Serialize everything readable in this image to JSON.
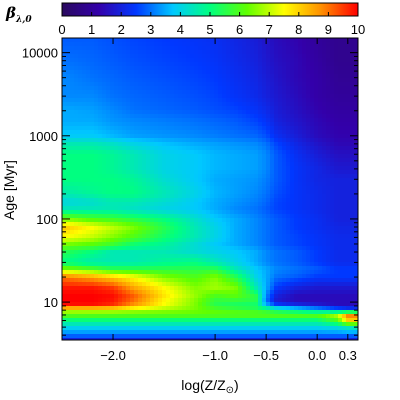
{
  "chart_data": {
    "type": "heatmap",
    "colorbar": {
      "title": "β",
      "title_subscript": "λ,0",
      "range": [
        0,
        10
      ],
      "ticks": [
        "0",
        "1",
        "2",
        "3",
        "4",
        "5",
        "6",
        "7",
        "8",
        "9",
        "10"
      ],
      "colormap": [
        "#2a0a5e",
        "#3300aa",
        "#0038ff",
        "#00c8ff",
        "#00ff80",
        "#60ff00",
        "#ffff00",
        "#ff9000",
        "#ff0000"
      ]
    },
    "x_axis": {
      "label": "log(Z/Z",
      "label_sub": "⊙",
      "label_end": ")",
      "range": [
        -2.5,
        0.4
      ],
      "ticks": [
        {
          "value": -2.0,
          "label": "−2.0"
        },
        {
          "value": -1.0,
          "label": "−1.0"
        },
        {
          "value": -0.5,
          "label": "−0.5"
        },
        {
          "value": 0.0,
          "label": "0.0"
        },
        {
          "value": 0.3,
          "label": "0.3"
        }
      ]
    },
    "y_axis": {
      "label": "Age [Myr]",
      "scale": "log",
      "range": [
        3.5,
        15000
      ],
      "ticks": [
        {
          "value": 10,
          "label": "10"
        },
        {
          "value": 100,
          "label": "100"
        },
        {
          "value": 1000,
          "label": "1000"
        },
        {
          "value": 10000,
          "label": "10000"
        }
      ]
    },
    "values_matrix_description": "beta values sampled on grid of ages (rows, log) and metallicities (columns)",
    "ages": [
      3.5,
      4,
      5,
      6,
      7,
      8,
      9,
      10,
      12,
      15,
      20,
      25,
      30,
      40,
      50,
      60,
      80,
      100,
      130,
      160,
      200,
      300,
      400,
      600,
      800,
      1000,
      1500,
      2000,
      3000,
      5000,
      8000,
      15000
    ],
    "logZ": [
      -2.5,
      -2.2,
      -2.0,
      -1.8,
      -1.5,
      -1.2,
      -1.0,
      -0.8,
      -0.6,
      -0.5,
      -0.4,
      -0.2,
      0.0,
      0.2,
      0.3,
      0.4
    ],
    "beta": [
      [
        2.0,
        2.0,
        2.0,
        2.0,
        2.0,
        2.0,
        2.0,
        2.0,
        2.0,
        2.0,
        2.0,
        2.0,
        2.0,
        2.0,
        2.0,
        2.0
      ],
      [
        3.0,
        3.0,
        3.0,
        3.0,
        3.0,
        3.0,
        3.0,
        3.0,
        3.0,
        3.0,
        3.0,
        3.0,
        3.0,
        3.0,
        3.0,
        3.0
      ],
      [
        4.0,
        4.0,
        4.0,
        4.0,
        4.0,
        4.0,
        4.0,
        4.0,
        4.0,
        4.0,
        4.0,
        4.0,
        4.0,
        4.2,
        4.5,
        4.5
      ],
      [
        5.0,
        5.0,
        5.0,
        5.0,
        5.0,
        5.0,
        5.0,
        5.0,
        5.0,
        5.0,
        5.0,
        5.0,
        5.0,
        6.0,
        8.0,
        8.0
      ],
      [
        6.2,
        6.2,
        6.2,
        6.2,
        6.2,
        6.2,
        6.2,
        6.2,
        6.2,
        6.2,
        6.2,
        6.2,
        6.2,
        7.0,
        9.0,
        9.0
      ],
      [
        7.0,
        7.0,
        7.0,
        6.8,
        6.6,
        6.4,
        6.2,
        6.0,
        5.8,
        5.5,
        5.0,
        4.5,
        4.0,
        3.5,
        3.0,
        3.0
      ],
      [
        9.8,
        9.8,
        9.5,
        8.5,
        7.5,
        6.5,
        5.5,
        5.2,
        5.0,
        4.0,
        3.0,
        2.5,
        2.0,
        1.5,
        1.5,
        1.5
      ],
      [
        10.0,
        10.0,
        9.8,
        9.0,
        7.5,
        6.5,
        5.5,
        5.5,
        5.5,
        3.0,
        1.8,
        1.5,
        1.5,
        1.5,
        1.5,
        1.5
      ],
      [
        10.0,
        10.0,
        9.9,
        9.2,
        7.8,
        6.7,
        6.0,
        6.2,
        5.5,
        3.2,
        2.0,
        1.5,
        1.5,
        1.5,
        1.5,
        1.5
      ],
      [
        9.8,
        9.8,
        9.5,
        8.5,
        7.5,
        6.5,
        6.8,
        6.5,
        4.5,
        3.5,
        2.5,
        2.0,
        1.8,
        1.8,
        1.8,
        1.8
      ],
      [
        9.0,
        8.5,
        8.0,
        7.5,
        6.5,
        6.0,
        6.5,
        5.5,
        4.0,
        3.5,
        3.0,
        2.8,
        2.5,
        2.5,
        2.5,
        2.5
      ],
      [
        6.5,
        6.0,
        5.5,
        5.5,
        5.5,
        5.5,
        5.5,
        4.5,
        3.8,
        3.5,
        3.2,
        3.0,
        2.8,
        2.5,
        2.5,
        2.5
      ],
      [
        5.0,
        4.5,
        4.5,
        4.5,
        4.8,
        5.0,
        4.5,
        4.0,
        3.5,
        3.2,
        3.0,
        2.8,
        2.5,
        2.2,
        2.2,
        2.2
      ],
      [
        5.5,
        5.0,
        4.5,
        4.5,
        4.5,
        4.2,
        4.0,
        3.8,
        3.5,
        3.2,
        3.0,
        2.8,
        2.5,
        2.2,
        2.2,
        2.2
      ],
      [
        6.5,
        6.2,
        5.8,
        5.2,
        4.8,
        4.2,
        3.8,
        3.5,
        3.2,
        3.0,
        2.8,
        2.6,
        2.4,
        2.2,
        2.2,
        2.2
      ],
      [
        7.5,
        7.0,
        6.5,
        6.0,
        5.2,
        4.5,
        4.0,
        3.5,
        3.2,
        3.0,
        2.8,
        2.6,
        2.4,
        2.2,
        2.2,
        2.2
      ],
      [
        8.2,
        7.5,
        7.0,
        6.5,
        5.5,
        4.5,
        4.0,
        3.5,
        3.2,
        3.0,
        2.8,
        2.5,
        2.3,
        2.1,
        2.1,
        2.1
      ],
      [
        6.5,
        6.0,
        5.8,
        5.5,
        5.0,
        4.3,
        3.8,
        3.5,
        3.2,
        3.0,
        2.8,
        2.5,
        2.3,
        2.0,
        2.0,
        2.0
      ],
      [
        4.5,
        4.5,
        4.5,
        4.3,
        4.0,
        3.8,
        3.5,
        3.2,
        3.0,
        2.8,
        2.6,
        2.4,
        2.2,
        2.0,
        2.0,
        2.0
      ],
      [
        4.0,
        4.2,
        4.5,
        4.5,
        4.2,
        3.8,
        3.5,
        3.3,
        3.1,
        2.9,
        2.6,
        2.4,
        2.2,
        2.0,
        2.0,
        2.0
      ],
      [
        4.5,
        4.8,
        5.0,
        5.0,
        4.5,
        4.0,
        3.6,
        3.4,
        3.2,
        3.0,
        2.7,
        2.4,
        2.2,
        2.0,
        2.0,
        2.0
      ],
      [
        5.0,
        5.0,
        5.0,
        4.8,
        4.2,
        3.8,
        3.5,
        3.4,
        3.3,
        3.1,
        2.8,
        2.4,
        2.1,
        2.0,
        2.0,
        2.0
      ],
      [
        5.0,
        5.0,
        4.8,
        4.5,
        4.0,
        3.8,
        3.6,
        3.5,
        3.4,
        3.2,
        2.8,
        2.4,
        2.1,
        1.8,
        1.8,
        1.8
      ],
      [
        5.0,
        5.0,
        4.8,
        4.5,
        4.0,
        3.8,
        3.6,
        3.5,
        3.4,
        3.2,
        2.8,
        2.3,
        1.9,
        1.6,
        1.6,
        1.6
      ],
      [
        4.5,
        4.5,
        4.3,
        4.0,
        3.7,
        3.5,
        3.4,
        3.3,
        3.2,
        3.0,
        2.6,
        2.1,
        1.7,
        1.4,
        1.4,
        1.4
      ],
      [
        3.8,
        3.8,
        3.6,
        3.4,
        3.3,
        3.2,
        3.1,
        3.0,
        2.9,
        2.7,
        2.3,
        1.9,
        1.5,
        1.3,
        1.3,
        1.3
      ],
      [
        3.5,
        3.5,
        3.3,
        3.2,
        3.1,
        3.0,
        2.9,
        2.8,
        2.6,
        2.4,
        2.0,
        1.7,
        1.4,
        1.2,
        1.2,
        1.2
      ],
      [
        3.5,
        3.4,
        3.2,
        3.0,
        2.9,
        2.8,
        2.7,
        2.6,
        2.4,
        2.2,
        1.9,
        1.6,
        1.3,
        1.1,
        1.1,
        1.1
      ],
      [
        3.2,
        3.2,
        3.0,
        2.9,
        2.8,
        2.7,
        2.6,
        2.4,
        2.2,
        2.0,
        1.8,
        1.5,
        1.2,
        1.0,
        1.0,
        1.0
      ],
      [
        3.2,
        3.0,
        2.9,
        2.8,
        2.7,
        2.6,
        2.5,
        2.3,
        2.1,
        1.9,
        1.7,
        1.4,
        1.2,
        0.9,
        0.9,
        0.9
      ],
      [
        3.0,
        2.9,
        2.8,
        2.7,
        2.6,
        2.5,
        2.4,
        2.2,
        2.0,
        1.8,
        1.6,
        1.4,
        1.1,
        0.8,
        0.8,
        0.8
      ],
      [
        2.8,
        2.8,
        2.7,
        2.6,
        2.5,
        2.4,
        2.3,
        2.1,
        1.9,
        1.7,
        1.5,
        1.3,
        1.0,
        0.8,
        0.8,
        0.8
      ]
    ]
  }
}
